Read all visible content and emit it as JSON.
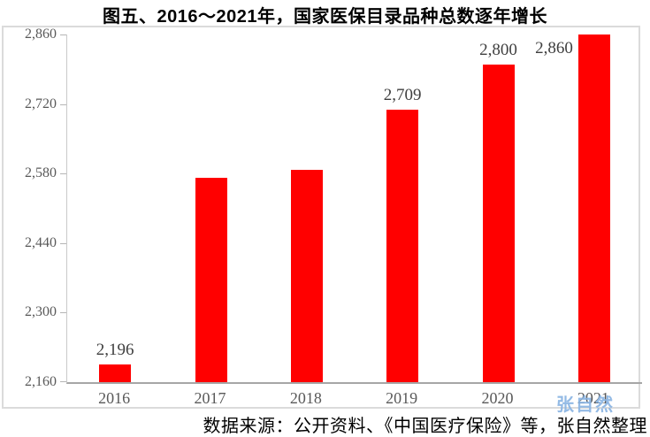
{
  "title": "图五、2016～2021年，国家医保目录品种总数逐年增长",
  "source_note": "数据来源：公开资料、《中国医疗保险》等，张自然整理",
  "watermark": "张自然",
  "colors": {
    "bar": "#ff0000",
    "x_axis_line": "#a6a6a6",
    "y_axis_line": "#c9c9c9",
    "chart_border": "#dbdbdb",
    "tick_text": "#595959",
    "data_label_text": "#3f3f3f",
    "watermark_text": "#87b2e2"
  },
  "chart_data": {
    "type": "bar",
    "categories": [
      "2016",
      "2017",
      "2018",
      "2019",
      "2020",
      "2021"
    ],
    "values": [
      2196,
      2571,
      2588,
      2709,
      2800,
      2860
    ],
    "data_labels": [
      "2,196",
      null,
      null,
      "2,709",
      "2,800",
      "2,860"
    ],
    "title": "图五、2016～2021年，国家医保目录品种总数逐年增长",
    "xlabel": "",
    "ylabel": "",
    "ylim": [
      2160,
      2860
    ],
    "y_ticks": [
      2160,
      2300,
      2440,
      2580,
      2720,
      2860
    ],
    "y_tick_labels": [
      "2,160",
      "2,300",
      "2,440",
      "2,580",
      "2,720",
      "2,860"
    ],
    "grid": false,
    "legend": "none",
    "bar_color": "#ff0000"
  }
}
